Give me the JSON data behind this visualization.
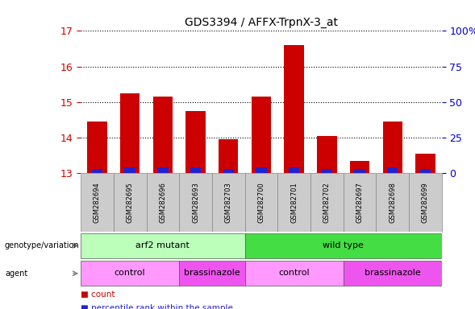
{
  "title": "GDS3394 / AFFX-TrpnX-3_at",
  "samples": [
    "GSM282694",
    "GSM282695",
    "GSM282696",
    "GSM282693",
    "GSM282703",
    "GSM282700",
    "GSM282701",
    "GSM282702",
    "GSM282697",
    "GSM282698",
    "GSM282699"
  ],
  "count_values": [
    14.45,
    15.25,
    15.15,
    14.75,
    13.95,
    15.15,
    16.6,
    14.05,
    13.35,
    14.45,
    13.55
  ],
  "percentile_values": [
    3,
    4,
    4,
    4,
    3,
    4,
    4,
    3,
    3,
    4,
    3
  ],
  "ymin": 13,
  "ymax": 17,
  "yticks": [
    13,
    14,
    15,
    16,
    17
  ],
  "right_yticks": [
    0,
    25,
    50,
    75,
    100
  ],
  "right_yticklabels": [
    "0",
    "25",
    "50",
    "75",
    "100%"
  ],
  "bar_color_red": "#cc0000",
  "bar_color_blue": "#2222cc",
  "bar_width": 0.6,
  "genotype_groups": [
    {
      "label": "arf2 mutant",
      "start": 0,
      "end": 5,
      "color": "#bbffbb"
    },
    {
      "label": "wild type",
      "start": 5,
      "end": 11,
      "color": "#44dd44"
    }
  ],
  "agent_groups": [
    {
      "label": "control",
      "start": 0,
      "end": 3,
      "color": "#ff99ff"
    },
    {
      "label": "brassinazole",
      "start": 3,
      "end": 5,
      "color": "#ee55ee"
    },
    {
      "label": "control",
      "start": 5,
      "end": 8,
      "color": "#ff99ff"
    },
    {
      "label": "brassinazole",
      "start": 8,
      "end": 11,
      "color": "#ee55ee"
    }
  ],
  "bg_color": "#ffffff",
  "left_tick_color": "#cc0000",
  "right_tick_color": "#0000cc",
  "sample_bg": "#cccccc",
  "legend_count_color": "#cc0000",
  "legend_pct_color": "#2222cc"
}
